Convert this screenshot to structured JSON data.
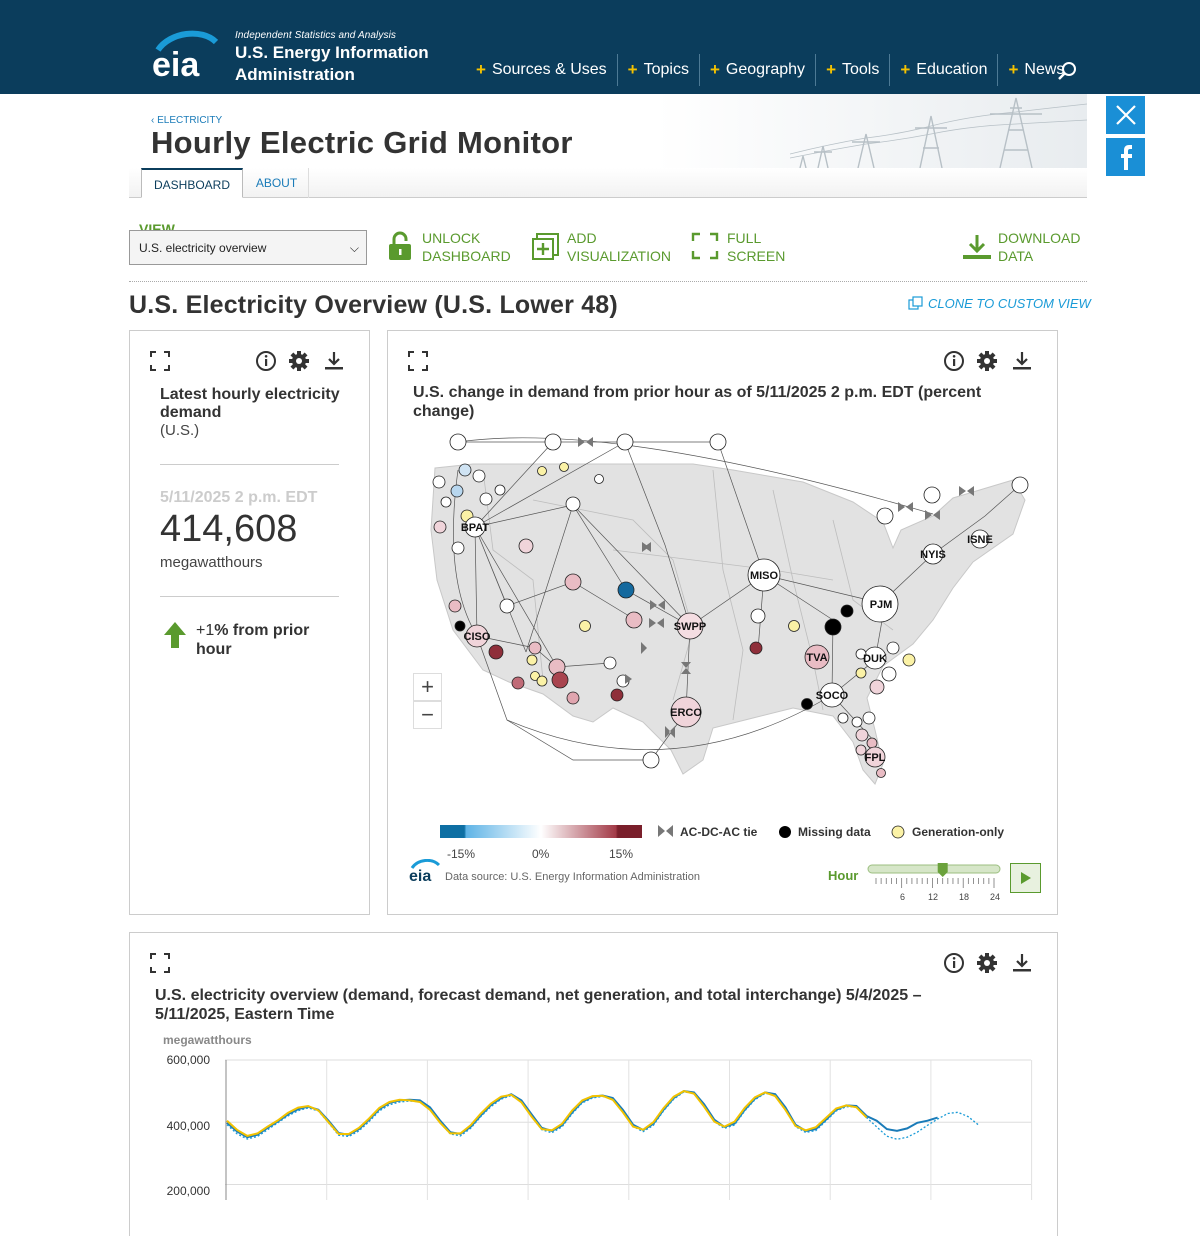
{
  "header": {
    "tagline": "Independent Statistics and Analysis",
    "org_line1": "U.S. Energy Information",
    "org_line2": "Administration",
    "logo_text": "eia",
    "nav": [
      "Sources & Uses",
      "Topics",
      "Geography",
      "Tools",
      "Education",
      "News"
    ],
    "colors": {
      "bar": "#0b3d5c",
      "plus": "#f4c200",
      "accent_green": "#5a9a2e",
      "link_blue": "#1a7bb8"
    }
  },
  "social": {
    "twitter_icon": "x-icon",
    "facebook_icon": "facebook-icon"
  },
  "page": {
    "breadcrumb": "‹ ELECTRICITY",
    "title": "Hourly Electric Grid Monitor",
    "tabs": [
      "DASHBOARD",
      "ABOUT"
    ],
    "active_tab": "DASHBOARD"
  },
  "toolbar": {
    "view_label": "VIEW",
    "view_value": "U.S. electricity overview",
    "unlock": [
      "UNLOCK",
      "DASHBOARD"
    ],
    "add": [
      "ADD",
      "VISUALIZATION"
    ],
    "fullscreen": [
      "FULL",
      "SCREEN"
    ],
    "download": [
      "DOWNLOAD",
      "DATA"
    ]
  },
  "section": {
    "title": "U.S. Electricity Overview (U.S. Lower 48)",
    "clone": "CLONE TO CUSTOM VIEW"
  },
  "demand_panel": {
    "title": "Latest hourly electricity demand",
    "subtitle": "(U.S.)",
    "date": "5/11/2025 2 p.m. EDT",
    "value": "414,608",
    "unit": "megawatthours",
    "change_sign": "+",
    "change_num": "1",
    "change_text": "% from prior hour"
  },
  "map_panel": {
    "title": "U.S. change in demand from prior hour as of 5/11/2025 2 p.m. EDT (percent change)",
    "labels": [
      "BPAT",
      "CISO",
      "SWPP",
      "MISO",
      "PJM",
      "NYIS",
      "ISNE",
      "TVA",
      "DUK",
      "SOCO",
      "ERCO",
      "FPL"
    ],
    "zoom_in": "+",
    "zoom_out": "−",
    "legend": {
      "scale_ticks": [
        "-15%",
        "0%",
        "15%"
      ],
      "tie": "AC-DC-AC tie",
      "missing": "Missing data",
      "genonly": "Generation-only",
      "colors": {
        "neg": "#0e6fa3",
        "mid": "#ffffff",
        "pos": "#7a1f2b",
        "missing": "#000000",
        "genonly": "#fbf2a6"
      }
    },
    "source": "Data source: U.S. Energy Information Administration",
    "hour_label": "Hour",
    "hour_ticks": [
      "6",
      "12",
      "18",
      "24"
    ],
    "hour_value": 14
  },
  "chart_panel": {
    "title": "U.S. electricity overview (demand, forecast demand, net generation, and total interchange) 5/4/2025 – 5/11/2025, Eastern Time",
    "unit": "megawatthours"
  },
  "chart_data": {
    "type": "line",
    "title": "U.S. electricity overview (demand, forecast demand, net generation, and total interchange) 5/4/2025 – 5/11/2025, Eastern Time",
    "ylabel": "megawatthours",
    "yticks": [
      "600,000",
      "400,000",
      "200,000"
    ],
    "ylim": [
      150000,
      600000
    ],
    "grid": true,
    "series": [
      {
        "style": "demand",
        "color": "#1a7bb8",
        "values": [
          398000,
          370000,
          352000,
          360000,
          382000,
          402000,
          425000,
          442000,
          450000,
          440000,
          405000,
          365000,
          360000,
          378000,
          408000,
          442000,
          462000,
          470000,
          472000,
          470000,
          448000,
          405000,
          368000,
          362000,
          385000,
          422000,
          455000,
          478000,
          490000,
          470000,
          425000,
          382000,
          372000,
          390000,
          432000,
          466000,
          482000,
          486000,
          478000,
          440000,
          392000,
          375000,
          395000,
          440000,
          478000,
          500000,
          496000,
          458000,
          408000,
          385000,
          396000,
          440000,
          476000,
          496000,
          490000,
          448000,
          392000,
          372000,
          378000,
          408000,
          440000,
          454000,
          452000,
          420000,
          405000,
          378000,
          372000,
          380000,
          398000,
          405000,
          415000
        ]
      },
      {
        "style": "forecast",
        "color": "#1a9bd7",
        "values": [
          392000,
          362000,
          346000,
          354000,
          376000,
          398000,
          420000,
          437000,
          446000,
          436000,
          398000,
          358000,
          354000,
          372000,
          402000,
          436000,
          456000,
          465000,
          468000,
          466000,
          443000,
          398000,
          362000,
          356000,
          380000,
          418000,
          450000,
          474000,
          486000,
          466000,
          418000,
          376000,
          366000,
          385000,
          427000,
          462000,
          478000,
          483000,
          475000,
          434000,
          386000,
          370000,
          390000,
          436000,
          474000,
          497000,
          493000,
          452000,
          402000,
          380000,
          391000,
          436000,
          472000,
          493000,
          487000,
          442000,
          386000,
          367000,
          373000,
          404000,
          436000,
          450000,
          449000,
          415000,
          385000,
          355000,
          345000,
          352000,
          368000,
          390000,
          410000,
          428000,
          432000,
          418000,
          392000
        ]
      },
      {
        "style": "net generation",
        "color": "#f2c200",
        "values": [
          405000,
          375000,
          356000,
          364000,
          386000,
          406000,
          430000,
          447000,
          452000,
          438000,
          400000,
          362000,
          362000,
          382000,
          412000,
          446000,
          465000,
          472000,
          470000,
          465000,
          440000,
          398000,
          364000,
          364000,
          390000,
          428000,
          460000,
          482000,
          488000,
          464000,
          418000,
          378000,
          374000,
          395000,
          438000,
          470000,
          484000,
          485000,
          472000,
          432000,
          386000,
          376000,
          400000,
          445000,
          482000,
          500000,
          492000,
          450000,
          402000,
          386000,
          402000,
          446000,
          480000,
          496000,
          484000,
          440000,
          388000,
          374000,
          384000,
          414000,
          444000,
          454000,
          448000,
          415000
        ]
      }
    ]
  }
}
